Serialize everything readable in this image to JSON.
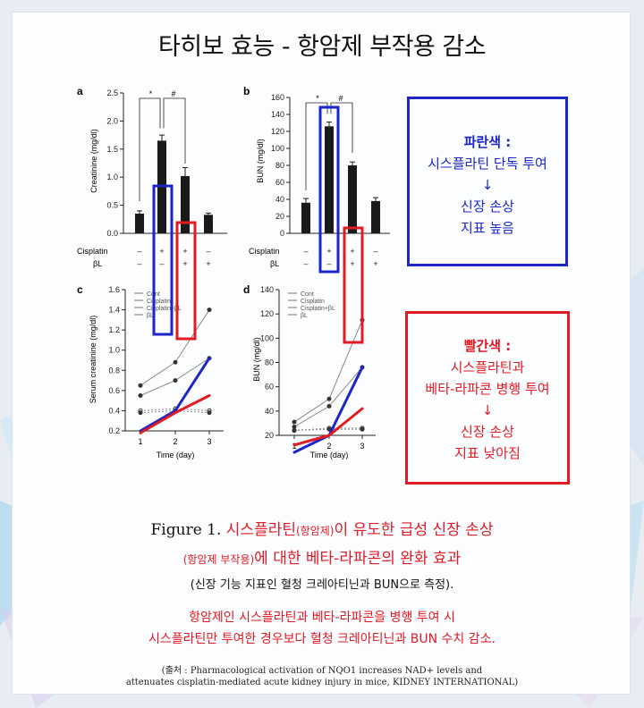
{
  "title": "타히보 효능 - 항암제 부작용 감소",
  "legend_blue": {
    "head": "파란색 :",
    "line1": "시스플라틴 단독 투여",
    "arrow": "↓",
    "line2": "신장 손상",
    "line3": "지표 높음",
    "color": "#1b25c8"
  },
  "legend_red": {
    "head": "빨간색 :",
    "line1": "시스플라틴과",
    "line2": "베타-라파콘 병행 투여",
    "arrow": "↓",
    "line3": "신장 손상",
    "line4": "지표 낮아짐",
    "color": "#e01b24"
  },
  "caption": {
    "fig": "Figure 1.",
    "red1": "시스플라틴",
    "red1_small": "(항암제)",
    "dark1": "이 유도한 급성 신장 손상",
    "red2_small": "(항암제 부작용)",
    "dark2": "에 대한 베타-라파콘의 완화 효과",
    "note": "(신장 기능 지표인 혈청 크레아티닌과 BUN으로 측정).",
    "summary1": "항암제인 시스플라틴과 베타-라파콘을 병행 투여 시",
    "summary2": "시스플라틴만 투여한 경우보다 혈청 크레아티닌과 BUN 수치 감소."
  },
  "source": {
    "line1": "(출처 : Pharmacological activation of NQO1 increases NAD+ levels and",
    "line2": "attenuates cisplatin-mediated acute kidney injury in mice, KIDNEY INTERNATIONAL)"
  },
  "treatment_labels": {
    "row1": "Cisplatin",
    "row2": "βL",
    "cis": [
      "–",
      "+",
      "+",
      "–"
    ],
    "bl": [
      "–",
      "–",
      "+",
      "+"
    ]
  },
  "chart_data": [
    {
      "panel": "a",
      "type": "bar",
      "ylabel": "Creatinine (mg/dl)",
      "ylim": [
        0,
        2.5
      ],
      "yticks": [
        "0.0",
        "0.5",
        "1.0",
        "1.5",
        "2.0",
        "2.5"
      ],
      "values": [
        0.35,
        1.65,
        1.02,
        0.33
      ],
      "errors": [
        0.05,
        0.1,
        0.15,
        0.03
      ],
      "annotations": [
        "*",
        "#"
      ]
    },
    {
      "panel": "b",
      "type": "bar",
      "ylabel": "BUN (mg/dl)",
      "ylim": [
        0,
        160
      ],
      "yticks": [
        "0",
        "20",
        "40",
        "60",
        "80",
        "100",
        "120",
        "140",
        "160"
      ],
      "values": [
        36,
        126,
        80,
        38
      ],
      "errors": [
        5,
        5,
        4,
        4
      ],
      "annotations": [
        "*",
        "#"
      ]
    },
    {
      "panel": "c",
      "type": "line",
      "ylabel": "Serum creatinine (mg/dl)",
      "xlabel": "Time (day)",
      "ylim": [
        0.2,
        1.6
      ],
      "yticks": [
        "0.2",
        "0.4",
        "0.6",
        "0.8",
        "1.0",
        "1.2",
        "1.4",
        "1.6"
      ],
      "x": [
        1,
        2,
        3
      ],
      "xticks": [
        "1",
        "2",
        "3"
      ],
      "legend": [
        "Cont",
        "Cisplatin",
        "Cisplatin+βL",
        "βL"
      ],
      "series": [
        {
          "name": "Cont",
          "values": [
            0.4,
            0.42,
            0.4
          ]
        },
        {
          "name": "Cisplatin",
          "values": [
            0.65,
            0.88,
            1.4
          ]
        },
        {
          "name": "Cisplatin+βL",
          "values": [
            0.55,
            0.7,
            0.92
          ]
        },
        {
          "name": "βL",
          "values": [
            0.38,
            0.4,
            0.38
          ]
        }
      ],
      "highlight": [
        {
          "color": "blue",
          "values": [
            0.2,
            0.4,
            0.92
          ]
        },
        {
          "color": "red",
          "values": [
            0.18,
            0.38,
            0.55
          ]
        }
      ]
    },
    {
      "panel": "d",
      "type": "line",
      "ylabel": "BUN (mg/dl)",
      "xlabel": "Time (day)",
      "ylim": [
        20,
        140
      ],
      "yticks": [
        "20",
        "40",
        "60",
        "80",
        "100",
        "120",
        "140"
      ],
      "x": [
        1,
        2,
        3
      ],
      "xticks": [
        "1",
        "2",
        "3"
      ],
      "legend": [
        "Cont",
        "Cisplatin",
        "Cisplatin+βL",
        "βL"
      ],
      "series": [
        {
          "name": "Cont",
          "values": [
            24,
            26,
            26
          ]
        },
        {
          "name": "Cisplatin",
          "values": [
            31,
            50,
            115
          ]
        },
        {
          "name": "Cisplatin+βL",
          "values": [
            27,
            44,
            76
          ]
        },
        {
          "name": "βL",
          "values": [
            24,
            25,
            25
          ]
        }
      ],
      "highlight": [
        {
          "color": "blue",
          "values": [
            6,
            20,
            76
          ]
        },
        {
          "color": "red",
          "values": [
            12,
            20,
            42
          ]
        }
      ]
    }
  ]
}
